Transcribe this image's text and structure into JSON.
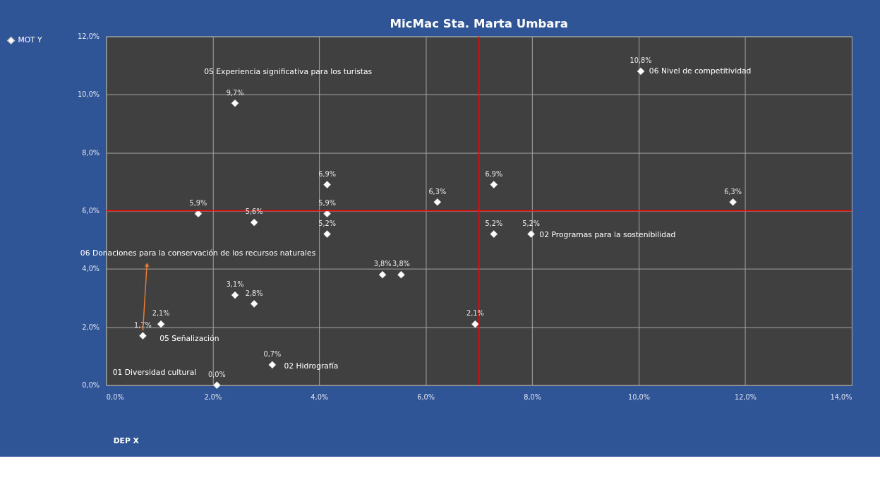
{
  "chart_data": {
    "type": "scatter",
    "title": "MicMac Sta. Marta Umbara",
    "xlabel": "DEP X",
    "x": [
      0.69,
      1.03,
      1.73,
      2.42,
      2.78,
      4.15,
      4.15,
      4.15,
      2.42,
      2.78,
      3.12,
      2.08,
      5.19,
      5.54,
      6.22,
      7.28,
      7.28,
      7.98,
      6.93,
      11.77,
      10.04
    ],
    "series": [
      {
        "name": "MOT Y",
        "color": "#ffffff",
        "values": [
          1.7,
          2.1,
          5.9,
          9.7,
          5.6,
          6.9,
          5.9,
          5.2,
          3.1,
          2.8,
          0.7,
          0.0,
          3.8,
          3.8,
          6.3,
          6.9,
          5.2,
          5.2,
          2.1,
          6.3,
          10.8
        ],
        "value_labels": [
          "1,7%",
          "2,1%",
          "5,9%",
          "9,7%",
          "5,6%",
          "6,9%",
          "5,9%",
          "5,2%",
          "3,1%",
          "2,8%",
          "0,7%",
          "0,0%",
          "3,8%",
          "3,8%",
          "6,3%",
          "6,9%",
          "5,2%",
          "5,2%",
          "2,1%",
          "6,3%",
          "10,8%"
        ]
      }
    ],
    "marker": "diamond",
    "legend": "left",
    "grid": true,
    "xlim": [
      0,
      14
    ],
    "ylim": [
      0,
      12
    ],
    "xticks": [
      {
        "value": 0,
        "label": "0,0%"
      },
      {
        "value": 2,
        "label": "2,0%"
      },
      {
        "value": 4,
        "label": "4,0%"
      },
      {
        "value": 6,
        "label": "6,0%"
      },
      {
        "value": 8,
        "label": "8,0%"
      },
      {
        "value": 10,
        "label": "10,0%"
      },
      {
        "value": 12,
        "label": "12,0%"
      },
      {
        "value": 14,
        "label": "14,0%"
      }
    ],
    "yticks": [
      {
        "value": 0,
        "label": "0,0%"
      },
      {
        "value": 2,
        "label": "2,0%"
      },
      {
        "value": 4,
        "label": "4,0%"
      },
      {
        "value": 6,
        "label": "6,0%"
      },
      {
        "value": 8,
        "label": "8,0%"
      },
      {
        "value": 10,
        "label": "10,0%"
      },
      {
        "value": 12,
        "label": "12,0%"
      }
    ],
    "ref_lines": [
      {
        "axis": "x",
        "value": 7.0,
        "color": "#ff0000"
      },
      {
        "axis": "y",
        "value": 6.0,
        "color": "#ff0000"
      }
    ],
    "annotations": [
      "05 Experiencia  significativa  para  los  turistas",
      {
        "text": "06 Nivel de competitividad",
        "x": 10.04,
        "y": 10.8
      },
      {
        "text": "02 Programas  para  la sostenibilidad",
        "x": 7.98,
        "y": 5.2
      },
      {
        "text": "06 Donaciones  para  la conservación  de los recursos  naturales",
        "x": 0.69,
        "y": 1.7
      },
      {
        "text": "05 Señalización",
        "x": 1.03,
        "y": 2.1
      },
      {
        "text": "02 Hidrografía",
        "x": 3.12,
        "y": 0.7
      },
      "01 Diversidad  cultural"
    ]
  }
}
